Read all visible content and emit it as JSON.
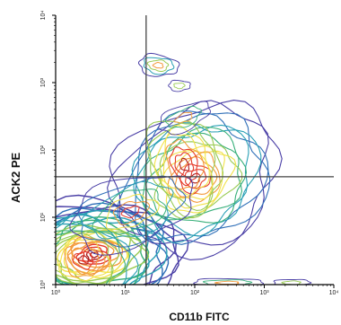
{
  "chart_data": {
    "type": "contour",
    "x_axis": {
      "label": "CD11b FITC",
      "scale": "log",
      "range": [
        1,
        10000
      ],
      "tick_labels": [
        "10⁰",
        "10¹",
        "10²",
        "10³",
        "10⁴"
      ],
      "tick_values": [
        1,
        10,
        100,
        1000,
        10000
      ]
    },
    "y_axis": {
      "label": "ACK2 PE",
      "scale": "log",
      "range": [
        1,
        10000
      ],
      "tick_labels": [
        "10⁰",
        "10¹",
        "10²",
        "10³",
        "10⁴"
      ],
      "tick_values": [
        1,
        10,
        100,
        1000,
        10000
      ]
    },
    "quadrant_gates": {
      "x": 20,
      "y": 40
    },
    "populations": [
      {
        "center_x": 3,
        "center_y": 4,
        "peak": "high"
      },
      {
        "center_x": 80,
        "center_y": 70,
        "peak": "medium"
      },
      {
        "center_x": 30,
        "center_y": 1800,
        "peak": "low"
      }
    ],
    "contour_colors": [
      "#4a3fa6",
      "#2f6fb8",
      "#2aa0b5",
      "#39b07a",
      "#9acb54",
      "#f2e24a",
      "#f39a3c",
      "#e53a2a",
      "#b01f1f"
    ],
    "grid": false,
    "legend": "none"
  }
}
